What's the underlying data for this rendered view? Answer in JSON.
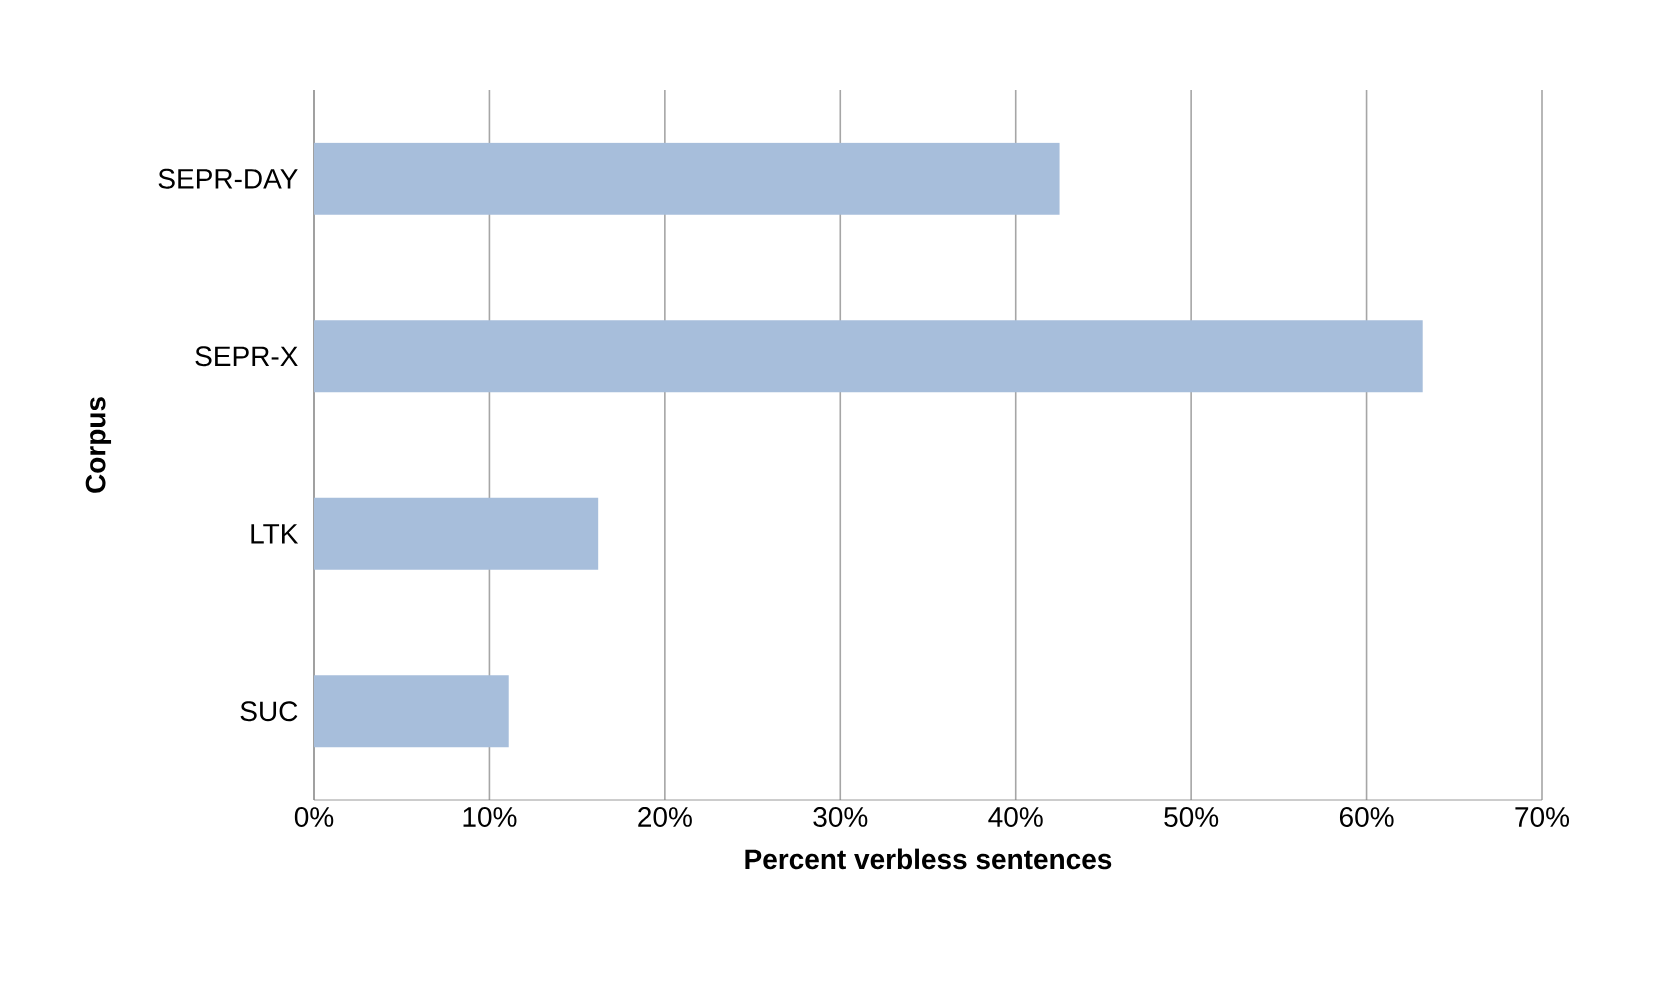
{
  "chart_data": {
    "type": "bar",
    "orientation": "horizontal",
    "xlabel": "Percent verbless sentences",
    "ylabel": "Corpus",
    "categories": [
      "SEPR-DAY",
      "SEPR-X",
      "LTK",
      "SUC"
    ],
    "values": [
      42.5,
      63.2,
      16.2,
      11.1
    ],
    "color": "#a7bedb",
    "xlim": [
      0,
      70
    ],
    "xticks": [
      {
        "value": 0,
        "label": "0%"
      },
      {
        "value": 10,
        "label": "10%"
      },
      {
        "value": 20,
        "label": "20%"
      },
      {
        "value": 30,
        "label": "30%"
      },
      {
        "value": 40,
        "label": "40%"
      },
      {
        "value": 50,
        "label": "50%"
      },
      {
        "value": 60,
        "label": "60%"
      },
      {
        "value": 70,
        "label": "70%"
      }
    ],
    "grid": "x"
  }
}
